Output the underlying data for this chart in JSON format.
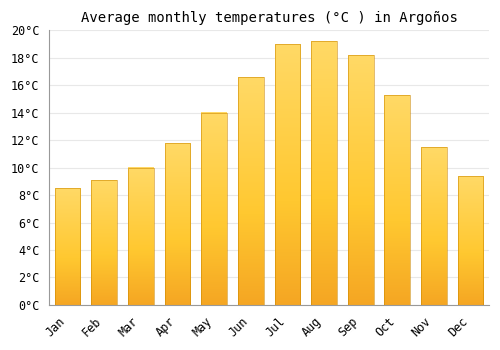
{
  "title": "Average monthly temperatures (°C ) in Argoños",
  "months": [
    "Jan",
    "Feb",
    "Mar",
    "Apr",
    "May",
    "Jun",
    "Jul",
    "Aug",
    "Sep",
    "Oct",
    "Nov",
    "Dec"
  ],
  "values": [
    8.5,
    9.1,
    10.0,
    11.8,
    14.0,
    16.6,
    19.0,
    19.2,
    18.2,
    15.3,
    11.5,
    9.4
  ],
  "bar_color_bottom": "#F5A623",
  "bar_color_top": "#FFD966",
  "bar_color_mid": "#FFC04C",
  "ylim": [
    0,
    20
  ],
  "yticks": [
    0,
    2,
    4,
    6,
    8,
    10,
    12,
    14,
    16,
    18,
    20
  ],
  "background_color": "#FFFFFF",
  "grid_color": "#E8E8E8",
  "title_fontsize": 10,
  "tick_fontsize": 8.5,
  "bar_width": 0.7
}
